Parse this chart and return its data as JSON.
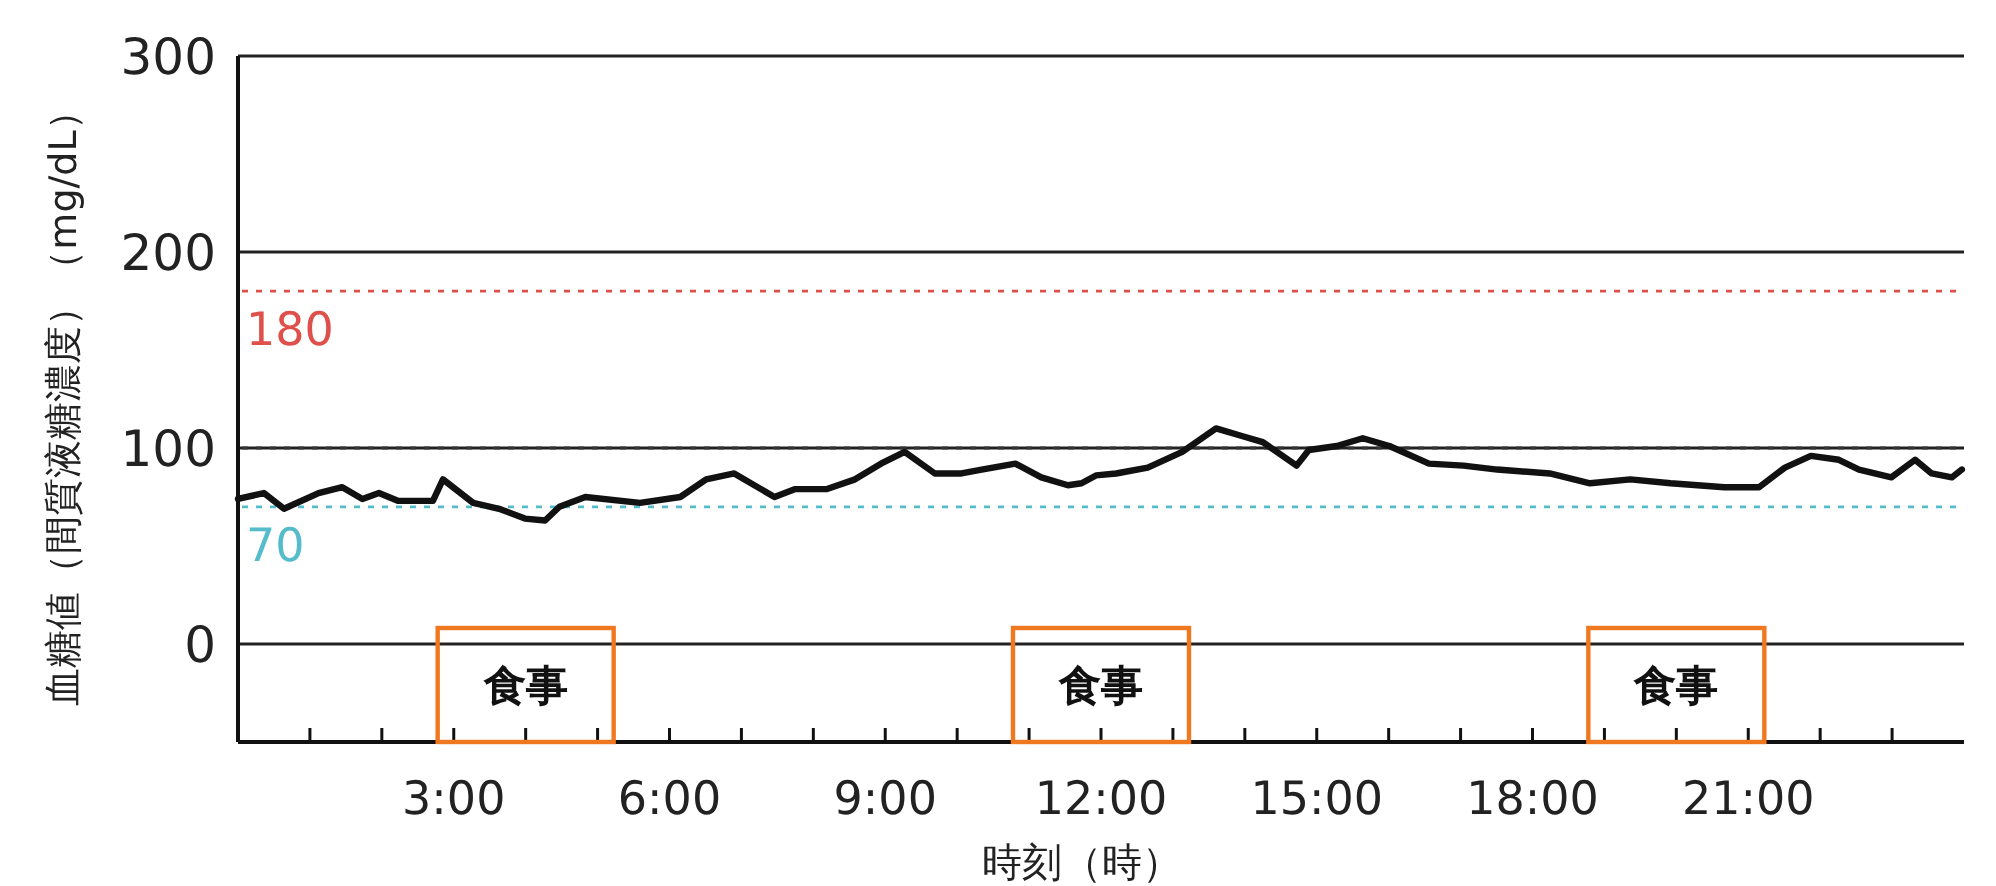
{
  "chart_data": {
    "type": "line",
    "xlabel": "時刻（時）",
    "ylabel": "血糖値（間質液糖濃度）（mg/dL）",
    "xlim": [
      0,
      24
    ],
    "ylim": [
      -50,
      300
    ],
    "yticks": [
      0,
      100,
      200,
      300
    ],
    "xticks": [
      {
        "value": 1,
        "label": null
      },
      {
        "value": 2,
        "label": null
      },
      {
        "value": 3,
        "label": "3:00"
      },
      {
        "value": 4,
        "label": null
      },
      {
        "value": 5,
        "label": null
      },
      {
        "value": 6,
        "label": "6:00"
      },
      {
        "value": 7,
        "label": null
      },
      {
        "value": 8,
        "label": null
      },
      {
        "value": 9,
        "label": "9:00"
      },
      {
        "value": 10,
        "label": null
      },
      {
        "value": 11,
        "label": null
      },
      {
        "value": 12,
        "label": "12:00"
      },
      {
        "value": 13,
        "label": null
      },
      {
        "value": 14,
        "label": null
      },
      {
        "value": 15,
        "label": "15:00"
      },
      {
        "value": 16,
        "label": null
      },
      {
        "value": 17,
        "label": null
      },
      {
        "value": 18,
        "label": "18:00"
      },
      {
        "value": 19,
        "label": null
      },
      {
        "value": 20,
        "label": null
      },
      {
        "value": 21,
        "label": "21:00"
      },
      {
        "value": 22,
        "label": null
      },
      {
        "value": 23,
        "label": null
      }
    ],
    "grid": "y",
    "line_style": "solid",
    "series": [
      {
        "color": "#111111",
        "x": [
          0,
          0.36,
          0.64,
          1.12,
          1.45,
          1.73,
          1.96,
          2.23,
          2.71,
          2.85,
          3.27,
          3.63,
          3.99,
          4.27,
          4.47,
          4.83,
          5.59,
          6.15,
          6.51,
          6.9,
          7.46,
          7.74,
          8.18,
          8.58,
          8.94,
          9.27,
          9.69,
          10.06,
          10.34,
          10.81,
          11.17,
          11.54,
          11.73,
          11.93,
          12.21,
          12.65,
          13.13,
          13.6,
          13.97,
          14.25,
          14.72,
          14.89,
          15.28,
          15.64,
          16.01,
          16.56,
          17.04,
          17.51,
          18.24,
          18.8,
          19.36,
          19.92,
          20.67,
          21.15,
          21.51,
          21.87,
          22.26,
          22.54,
          22.99,
          23.32,
          23.55,
          23.83,
          23.97
        ],
        "values": [
          74,
          77,
          69,
          77,
          80,
          74,
          77,
          73,
          73,
          84,
          72,
          69,
          64,
          63,
          70,
          75,
          72,
          75,
          84,
          87,
          75,
          79,
          79,
          84,
          92,
          98,
          87,
          87,
          89,
          92,
          85,
          81,
          82,
          86,
          87,
          90,
          98,
          110,
          106,
          103,
          91,
          99,
          101,
          105,
          101,
          92,
          91,
          89,
          87,
          82,
          84,
          82,
          80,
          80,
          90,
          96,
          94,
          89,
          85,
          94,
          87,
          85,
          89
        ]
      }
    ],
    "ref_lines": [
      {
        "axis": "y",
        "value": 180,
        "label": "180",
        "color": "#e0504a",
        "line_style": "dotted"
      },
      {
        "axis": "y",
        "value": 100,
        "color": "#333333",
        "line_style": "dotted"
      },
      {
        "axis": "y",
        "value": 70,
        "label": "70",
        "color": "#56bccb",
        "line_style": "dotted"
      }
    ],
    "annotations": [
      "食事",
      "食事",
      "食事"
    ]
  }
}
